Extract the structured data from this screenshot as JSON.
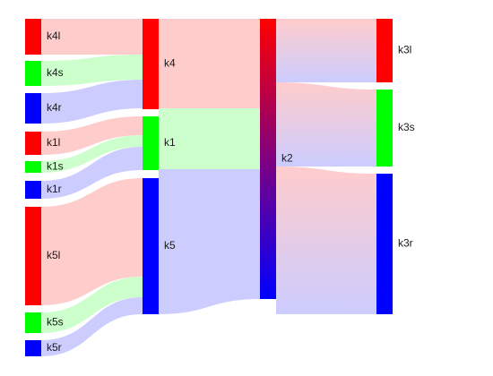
{
  "colors": {
    "red": "#ff0000",
    "green": "#00ff00",
    "blue": "#0000ff",
    "link_red": "#ffcccc",
    "link_green": "#ccffcc",
    "link_blue": "#ccccff"
  },
  "nodes": [
    {
      "id": "k4l",
      "label": "k4l",
      "color": "red"
    },
    {
      "id": "k4s",
      "label": "k4s",
      "color": "green"
    },
    {
      "id": "k4r",
      "label": "k4r",
      "color": "blue"
    },
    {
      "id": "k1l",
      "label": "k1l",
      "color": "red"
    },
    {
      "id": "k1s",
      "label": "k1s",
      "color": "green"
    },
    {
      "id": "k1r",
      "label": "k1r",
      "color": "blue"
    },
    {
      "id": "k5l",
      "label": "k5l",
      "color": "red"
    },
    {
      "id": "k5s",
      "label": "k5s",
      "color": "green"
    },
    {
      "id": "k5r",
      "label": "k5r",
      "color": "blue"
    },
    {
      "id": "k4",
      "label": "k4",
      "color": "red"
    },
    {
      "id": "k1",
      "label": "k1",
      "color": "green"
    },
    {
      "id": "k5",
      "label": "k5",
      "color": "blue"
    },
    {
      "id": "k2",
      "label": "k2",
      "color": "red-blue-gradient"
    },
    {
      "id": "k3l",
      "label": "k3l",
      "color": "red"
    },
    {
      "id": "k3s",
      "label": "k3s",
      "color": "green"
    },
    {
      "id": "k3r",
      "label": "k3r",
      "color": "blue"
    }
  ],
  "links": [
    {
      "source": "k4l",
      "target": "k4",
      "color": "link_red"
    },
    {
      "source": "k4s",
      "target": "k4",
      "color": "link_green"
    },
    {
      "source": "k4r",
      "target": "k4",
      "color": "link_blue"
    },
    {
      "source": "k1l",
      "target": "k1",
      "color": "link_red"
    },
    {
      "source": "k1s",
      "target": "k1",
      "color": "link_green"
    },
    {
      "source": "k1r",
      "target": "k1",
      "color": "link_blue"
    },
    {
      "source": "k5l",
      "target": "k5",
      "color": "link_red"
    },
    {
      "source": "k5s",
      "target": "k5",
      "color": "link_green"
    },
    {
      "source": "k5r",
      "target": "k5",
      "color": "link_blue"
    },
    {
      "source": "k4",
      "target": "k2",
      "color": "link_red"
    },
    {
      "source": "k1",
      "target": "k2",
      "color": "link_green"
    },
    {
      "source": "k5",
      "target": "k2",
      "color": "link_blue"
    },
    {
      "source": "k2",
      "target": "k3l",
      "color": "gradient"
    },
    {
      "source": "k2",
      "target": "k3s",
      "color": "gradient"
    },
    {
      "source": "k2",
      "target": "k3r",
      "color": "gradient"
    }
  ]
}
